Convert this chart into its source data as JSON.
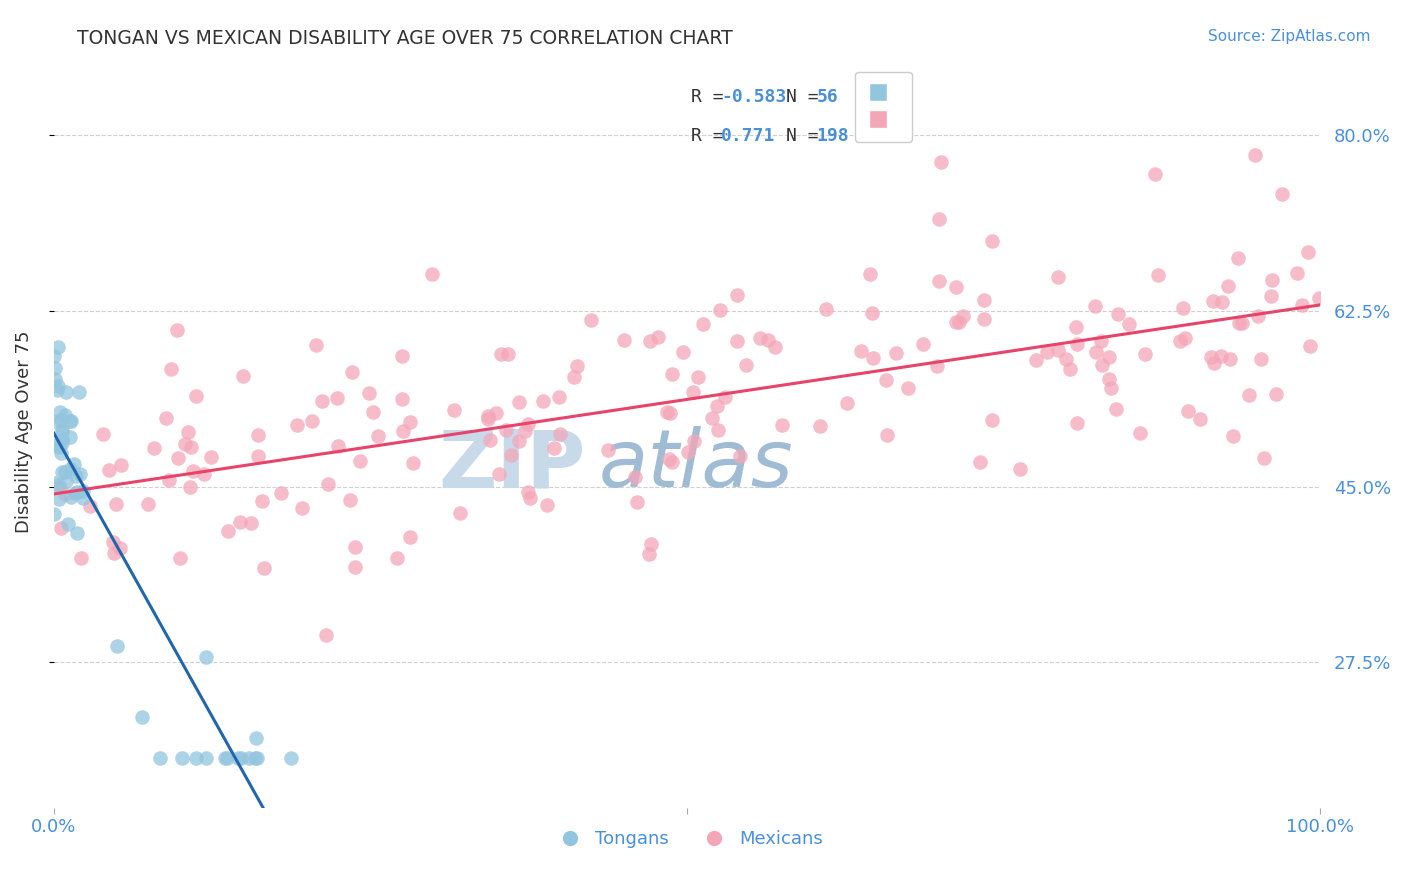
{
  "title": "TONGAN VS MEXICAN DISABILITY AGE OVER 75 CORRELATION CHART",
  "source_text": "Source: ZipAtlas.com",
  "ylabel": "Disability Age Over 75",
  "ytick_labels": [
    "27.5%",
    "45.0%",
    "62.5%",
    "80.0%"
  ],
  "ytick_values": [
    0.275,
    0.45,
    0.625,
    0.8
  ],
  "r_tongan": -0.583,
  "r_mexican": 0.771,
  "n_tongan": 56,
  "n_mexican": 198,
  "tongan_color": "#92c5de",
  "mexican_color": "#f4a6b8",
  "tongan_line_color": "#2166ac",
  "mexican_line_color": "#e8436a",
  "watermark_zip_color": "#c8daea",
  "watermark_atlas_color": "#a0bcd4",
  "background_color": "#ffffff",
  "xmin": 0.0,
  "xmax": 1.0,
  "ymin": 0.13,
  "ymax": 0.88,
  "tick_color": "#4a90d9",
  "title_color": "#333333",
  "legend_r_color": "#4a90d9",
  "legend_n_color": "#4a90d9",
  "grid_color": "#d0d0d0"
}
